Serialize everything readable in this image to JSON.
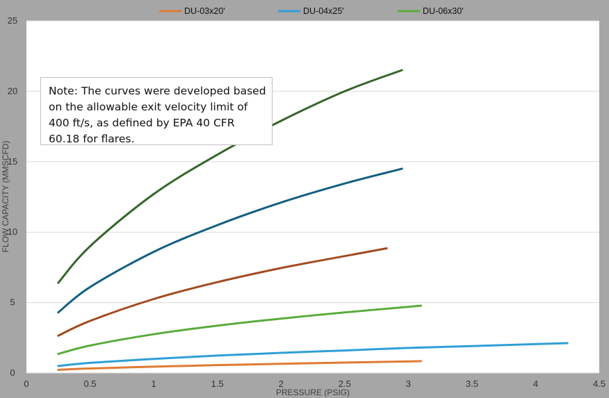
{
  "chart_data": {
    "type": "line",
    "title": "",
    "xlabel": "PRESSURE (PSIG)",
    "ylabel": "FLOW CAPACITY (MMSCFD)",
    "xlim": [
      0,
      4.5
    ],
    "ylim": [
      0,
      25
    ],
    "x_ticks": [
      "0",
      "0.5",
      "1",
      "1.5",
      "2",
      "2.5",
      "3",
      "3.5",
      "4",
      "4.5"
    ],
    "y_ticks": [
      "0",
      "5",
      "10",
      "15",
      "20",
      "25"
    ],
    "grid": "horizontal",
    "legend_position": "top-center",
    "legend": [
      "DU-03x20'",
      "DU-04x25'",
      "DU-06x30'"
    ],
    "annotation": "Note: The curves were developed based on the allowable exit velocity limit of 400 ft/s, as defined by EPA 40 CFR 60.18 for flares.",
    "series": [
      {
        "name": "DU-03x20'",
        "color": "#e07a34",
        "x": [
          0.25,
          0.5,
          1.0,
          1.5,
          2.0,
          2.5,
          3.0,
          3.1
        ],
        "y": [
          0.22,
          0.32,
          0.45,
          0.56,
          0.65,
          0.74,
          0.82,
          0.84
        ]
      },
      {
        "color": "#2e9fd6",
        "x": [
          0.25,
          0.5,
          1.0,
          1.5,
          2.0,
          2.5,
          3.0,
          3.5,
          4.0,
          4.25
        ],
        "y": [
          0.5,
          0.72,
          1.0,
          1.24,
          1.43,
          1.6,
          1.78,
          1.91,
          2.05,
          2.12
        ]
      },
      {
        "color": "#5aab3b",
        "x": [
          0.25,
          0.5,
          1.0,
          1.5,
          2.0,
          2.5,
          3.0,
          3.1
        ],
        "y": [
          1.35,
          1.95,
          2.75,
          3.36,
          3.86,
          4.3,
          4.7,
          4.78
        ]
      },
      {
        "name": "DU-04x25'",
        "color": "#a34a1f",
        "x": [
          0.25,
          0.5,
          1.0,
          1.5,
          2.0,
          2.5,
          2.83
        ],
        "y": [
          2.65,
          3.7,
          5.25,
          6.45,
          7.45,
          8.3,
          8.85
        ]
      },
      {
        "color": "#125f80",
        "x": [
          0.25,
          0.5,
          1.0,
          1.5,
          2.0,
          2.5,
          2.95
        ],
        "y": [
          4.3,
          6.1,
          8.6,
          10.5,
          12.1,
          13.45,
          14.5
        ]
      },
      {
        "name": "DU-06x30'",
        "color": "#35662a",
        "x": [
          0.25,
          0.5,
          1.0,
          1.5,
          2.0,
          2.5,
          2.95
        ],
        "y": [
          6.4,
          9.0,
          12.7,
          15.5,
          17.9,
          20.0,
          21.5
        ]
      }
    ]
  },
  "legend_colors": [
    "#e07a34",
    "#2e9fd6",
    "#5aab3b"
  ]
}
